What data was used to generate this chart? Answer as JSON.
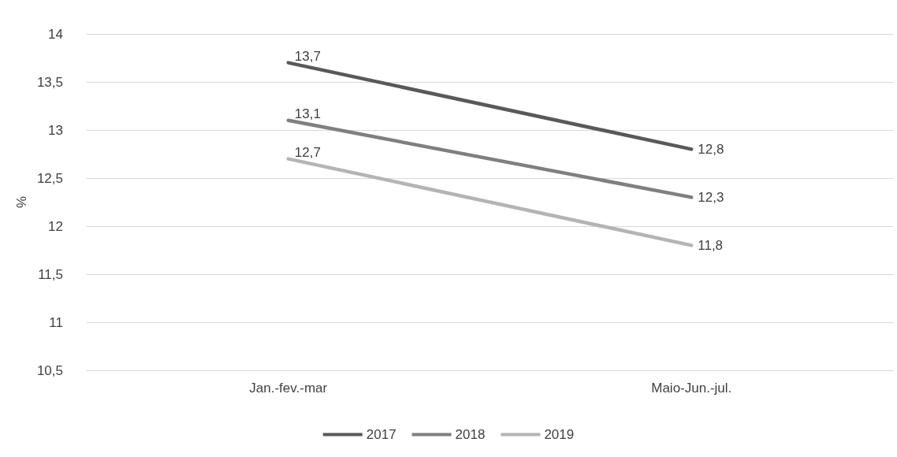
{
  "chart_data": {
    "type": "line",
    "ylabel": "%",
    "categories": [
      "Jan.-fev.-mar",
      "Maio-Jun.-jul."
    ],
    "series": [
      {
        "name": "2017",
        "color": "#595959",
        "values": [
          13.7,
          12.8
        ],
        "value_labels": [
          "13,7",
          "12,8"
        ]
      },
      {
        "name": "2018",
        "color": "#7f7f7f",
        "values": [
          13.1,
          12.3
        ],
        "value_labels": [
          "13,1",
          "12,3"
        ]
      },
      {
        "name": "2019",
        "color": "#b4b4b4",
        "values": [
          12.7,
          11.8
        ],
        "value_labels": [
          "12,7",
          "11,8"
        ]
      }
    ],
    "ylim": [
      10.5,
      14
    ],
    "yticks": [
      {
        "value": 10.5,
        "label": "10,5"
      },
      {
        "value": 11,
        "label": "11"
      },
      {
        "value": 11.5,
        "label": "11,5"
      },
      {
        "value": 12,
        "label": "12"
      },
      {
        "value": 12.5,
        "label": "12,5"
      },
      {
        "value": 13,
        "label": "13"
      },
      {
        "value": 13.5,
        "label": "13,5"
      },
      {
        "value": 14,
        "label": "14"
      }
    ],
    "grid": "y",
    "legend": "bottom",
    "marker": "none",
    "line_style": "solid"
  }
}
